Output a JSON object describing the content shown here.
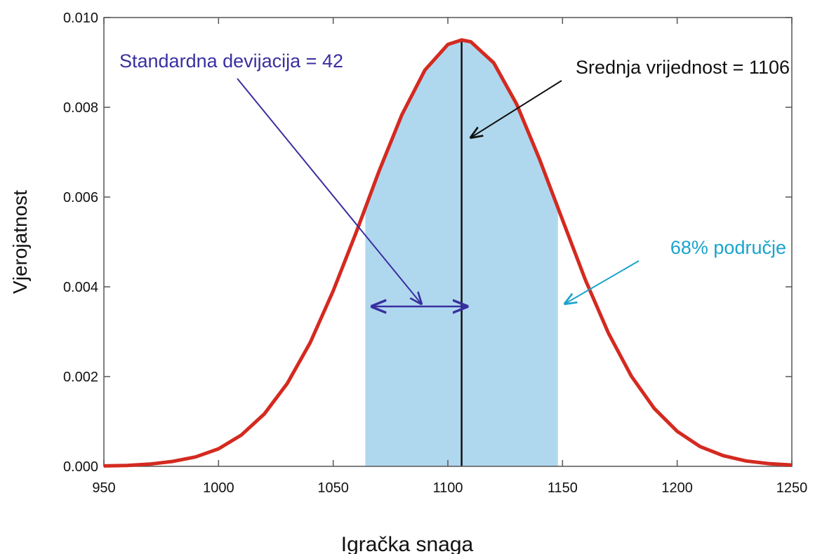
{
  "chart_data": {
    "type": "line",
    "xlabel": "Igračka snaga",
    "ylabel": "Vjerojatnost",
    "x": [
      950,
      960,
      970,
      980,
      990,
      1000,
      1010,
      1020,
      1030,
      1040,
      1050,
      1060,
      1070,
      1080,
      1090,
      1100,
      1106,
      1110,
      1120,
      1130,
      1140,
      1150,
      1160,
      1170,
      1180,
      1190,
      1200,
      1210,
      1220,
      1230,
      1240,
      1250
    ],
    "series": [
      {
        "name": "Vjerojatnost",
        "color": "#d42a20",
        "values": [
          1e-05,
          2e-05,
          5e-05,
          0.00011,
          0.00021,
          0.00039,
          0.0007,
          0.00117,
          0.00185,
          0.00276,
          0.00391,
          0.00521,
          0.00658,
          0.00784,
          0.00883,
          0.0094,
          0.0095,
          0.00946,
          0.00899,
          0.00807,
          0.00684,
          0.00549,
          0.00415,
          0.00297,
          0.00201,
          0.00129,
          0.00078,
          0.00044,
          0.00024,
          0.00012,
          6e-05,
          3e-05
        ]
      }
    ],
    "shade_range": [
      1064,
      1148
    ],
    "shade_color": "#afd8ef",
    "mean_line": 1106,
    "annotations": {
      "sd": "Standardna devijacija = 42",
      "mean": "Srednja vrijednost = 1106",
      "area": "68% područje"
    },
    "xlim": [
      950,
      1250
    ],
    "xticks": [
      950,
      1000,
      1050,
      1100,
      1150,
      1200,
      1250
    ],
    "ylim": [
      0,
      0.01
    ],
    "yticks": [
      {
        "value": 0,
        "label": "0.000"
      },
      {
        "value": 0.002,
        "label": "0.002"
      },
      {
        "value": 0.004,
        "label": "0.004"
      },
      {
        "value": 0.006,
        "label": "0.006"
      },
      {
        "value": 0.008,
        "label": "0.008"
      },
      {
        "value": 0.01,
        "label": "0.010"
      }
    ]
  }
}
